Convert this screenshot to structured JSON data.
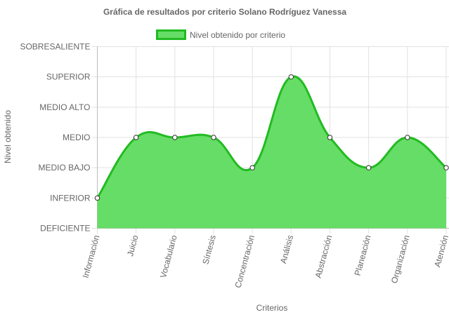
{
  "chart_data": {
    "type": "area",
    "title": "Gráfica de resultados por criterio Solano Rodríguez Vanessa",
    "xlabel": "Criterios",
    "ylabel": "Nivel obtenido",
    "categories": [
      "Información",
      "Juicio",
      "Vocabulario",
      "Síntesis",
      "Concentración",
      "Análisis",
      "Abstracción",
      "Planeación",
      "Organización",
      "Atención"
    ],
    "y_levels": [
      "DEFICIENTE",
      "INFERIOR",
      "MEDIO BAJO",
      "MEDIO",
      "MEDIO ALTO",
      "SUPERIOR",
      "SOBRESALIENTE"
    ],
    "ylim": [
      0,
      6
    ],
    "series": [
      {
        "name": "Nivel obtenido por criterio",
        "values": [
          1,
          3,
          3,
          3,
          2,
          5,
          3,
          2,
          3,
          2
        ],
        "fill_color": "#66dd66",
        "line_color": "#22bb22"
      }
    ],
    "legend_position": "top",
    "grid": true
  }
}
